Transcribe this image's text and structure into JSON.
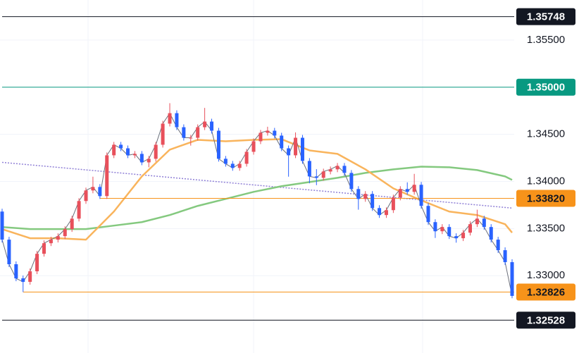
{
  "chart_data": {
    "type": "candlestick",
    "up_color": "#e8505b",
    "down_color": "#2962ff",
    "wick_color": "#5a5f6e",
    "ylim": [
      1.32179,
      1.35925
    ],
    "yticks": [
      {
        "value": 1.355,
        "label": "1.35500"
      },
      {
        "value": 1.345,
        "label": "1.34500"
      },
      {
        "value": 1.34,
        "label": "1.34000"
      },
      {
        "value": 1.335,
        "label": "1.33500"
      },
      {
        "value": 1.33,
        "label": "1.33000"
      }
    ],
    "grid": true,
    "candles": [
      [
        1.3368,
        1.3371,
        1.33352,
        1.33382
      ],
      [
        1.33382,
        1.33412,
        1.33091,
        1.33121
      ],
      [
        1.33121,
        1.33151,
        1.32941,
        1.32971
      ],
      [
        1.32971,
        1.33001,
        1.32826,
        1.32934
      ],
      [
        1.32934,
        1.33076,
        1.32904,
        1.33046
      ],
      [
        1.33046,
        1.33262,
        1.33016,
        1.33232
      ],
      [
        1.33232,
        1.33374,
        1.33202,
        1.33344
      ],
      [
        1.33344,
        1.33412,
        1.33314,
        1.33382
      ],
      [
        1.33382,
        1.33449,
        1.33352,
        1.33419
      ],
      [
        1.33419,
        1.33524,
        1.33389,
        1.33494
      ],
      [
        1.33494,
        1.33635,
        1.33464,
        1.33605
      ],
      [
        1.33605,
        1.33822,
        1.33575,
        1.33792
      ],
      [
        1.33792,
        1.33934,
        1.33762,
        1.33904
      ],
      [
        1.33904,
        1.3405,
        1.33874,
        1.33941
      ],
      [
        1.33941,
        1.33971,
        1.33814,
        1.33844
      ],
      [
        1.33844,
        1.34307,
        1.33814,
        1.34277
      ],
      [
        1.34277,
        1.34419,
        1.34247,
        1.34389
      ],
      [
        1.34389,
        1.34419,
        1.34321,
        1.34351
      ],
      [
        1.34351,
        1.34381,
        1.34247,
        1.34277
      ],
      [
        1.34277,
        1.34322,
        1.34247,
        1.34292
      ],
      [
        1.34292,
        1.34322,
        1.34172,
        1.34202
      ],
      [
        1.34202,
        1.3427,
        1.3415,
        1.3424
      ],
      [
        1.3424,
        1.34419,
        1.3421,
        1.34389
      ],
      [
        1.34389,
        1.34643,
        1.34359,
        1.34613
      ],
      [
        1.34613,
        1.3483,
        1.34583,
        1.34724
      ],
      [
        1.34724,
        1.34754,
        1.34545,
        1.34575
      ],
      [
        1.34575,
        1.34605,
        1.34433,
        1.34463
      ],
      [
        1.34463,
        1.34493,
        1.3438,
        1.34463
      ],
      [
        1.34463,
        1.34605,
        1.34433,
        1.34575
      ],
      [
        1.34575,
        1.3478,
        1.34545,
        1.34635
      ],
      [
        1.34635,
        1.34665,
        1.34508,
        1.34538
      ],
      [
        1.34538,
        1.34568,
        1.3421,
        1.3424
      ],
      [
        1.3424,
        1.3427,
        1.34157,
        1.34187
      ],
      [
        1.34187,
        1.34217,
        1.34113,
        1.34143
      ],
      [
        1.34143,
        1.34217,
        1.34113,
        1.34187
      ],
      [
        1.34187,
        1.34344,
        1.34157,
        1.34314
      ],
      [
        1.34314,
        1.34456,
        1.34284,
        1.34426
      ],
      [
        1.34426,
        1.34546,
        1.34396,
        1.34516
      ],
      [
        1.34516,
        1.3458,
        1.34486,
        1.34538
      ],
      [
        1.34538,
        1.34568,
        1.34456,
        1.34486
      ],
      [
        1.34486,
        1.34516,
        1.34321,
        1.34351
      ],
      [
        1.34351,
        1.34381,
        1.3405,
        1.34277
      ],
      [
        1.34277,
        1.3452,
        1.34247,
        1.34463
      ],
      [
        1.34463,
        1.34493,
        1.34187,
        1.34217
      ],
      [
        1.34217,
        1.34247,
        1.3398,
        1.34053
      ],
      [
        1.34053,
        1.3413,
        1.3396,
        1.34038
      ],
      [
        1.34038,
        1.34135,
        1.34008,
        1.34105
      ],
      [
        1.34105,
        1.34158,
        1.34075,
        1.34128
      ],
      [
        1.34128,
        1.34195,
        1.34098,
        1.34165
      ],
      [
        1.34165,
        1.34195,
        1.3406,
        1.3409
      ],
      [
        1.3409,
        1.3412,
        1.33889,
        1.33919
      ],
      [
        1.33919,
        1.33949,
        1.337,
        1.33814
      ],
      [
        1.33814,
        1.33897,
        1.33784,
        1.33867
      ],
      [
        1.33867,
        1.33897,
        1.33687,
        1.33717
      ],
      [
        1.33717,
        1.33747,
        1.33613,
        1.33643
      ],
      [
        1.33643,
        1.33725,
        1.33613,
        1.33695
      ],
      [
        1.33695,
        1.33859,
        1.33665,
        1.33829
      ],
      [
        1.33829,
        1.33949,
        1.33799,
        1.33919
      ],
      [
        1.33919,
        1.3399,
        1.33859,
        1.33889
      ],
      [
        1.33889,
        1.3408,
        1.33859,
        1.33964
      ],
      [
        1.33964,
        1.33994,
        1.3371,
        1.3374
      ],
      [
        1.3374,
        1.3377,
        1.33538,
        1.33568
      ],
      [
        1.33568,
        1.33598,
        1.334,
        1.33471
      ],
      [
        1.33471,
        1.33546,
        1.33441,
        1.33516
      ],
      [
        1.33516,
        1.33546,
        1.33389,
        1.33419
      ],
      [
        1.33419,
        1.33449,
        1.3335,
        1.33397
      ],
      [
        1.33397,
        1.33486,
        1.33367,
        1.33456
      ],
      [
        1.33456,
        1.33576,
        1.33426,
        1.33546
      ],
      [
        1.33546,
        1.337,
        1.33516,
        1.33605
      ],
      [
        1.33605,
        1.33635,
        1.33486,
        1.33516
      ],
      [
        1.33516,
        1.33546,
        1.33352,
        1.33382
      ],
      [
        1.33382,
        1.33412,
        1.3324,
        1.3327
      ],
      [
        1.3327,
        1.333,
        1.33113,
        1.33143
      ],
      [
        1.33143,
        1.33173,
        1.3276,
        1.32785
      ]
    ],
    "overlays": [
      {
        "color": "#8f7fd6",
        "dash": true,
        "x": [
          0,
          73
        ],
        "values": [
          1.34202,
          1.33717
        ]
      },
      {
        "color": "#84c97f",
        "x": [
          0,
          4,
          8,
          12,
          16,
          20,
          24,
          28,
          32,
          36,
          40,
          44,
          48,
          52,
          56,
          60,
          64,
          68,
          72,
          73
        ],
        "values": [
          1.33516,
          1.33494,
          1.33494,
          1.33494,
          1.33531,
          1.33568,
          1.33643,
          1.3374,
          1.33814,
          1.33889,
          1.33949,
          1.33993,
          1.34038,
          1.3409,
          1.34128,
          1.34157,
          1.3415,
          1.3412,
          1.34053,
          1.34016
        ]
      },
      {
        "color": "#f9b45c",
        "x": [
          0,
          4,
          8,
          12,
          16,
          20,
          24,
          28,
          32,
          36,
          40,
          44,
          48,
          52,
          56,
          60,
          64,
          68,
          72,
          73
        ],
        "values": [
          1.33494,
          1.33397,
          1.33397,
          1.33382,
          1.3368,
          1.34053,
          1.34337,
          1.34441,
          1.34426,
          1.34441,
          1.34448,
          1.34329,
          1.34292,
          1.34128,
          1.33926,
          1.33799,
          1.3368,
          1.33643,
          1.33546,
          1.33456
        ]
      }
    ],
    "levels": [
      {
        "value": 1.35748,
        "color": "#131722",
        "text_color": "#ffffff",
        "start": 0
      },
      {
        "value": 1.35,
        "label": "1.35000",
        "color": "#089981",
        "text_color": "#ffffff",
        "start": 0
      },
      {
        "value": 1.3382,
        "label": "1.33820",
        "color": "#f7931a",
        "text_color": "#131722",
        "start": 14
      },
      {
        "value": 1.32826,
        "color": "#f7931a",
        "text_color": "#131722",
        "start": 3
      },
      {
        "value": 1.32528,
        "color": "#131722",
        "text_color": "#ffffff",
        "start": 0
      }
    ]
  }
}
